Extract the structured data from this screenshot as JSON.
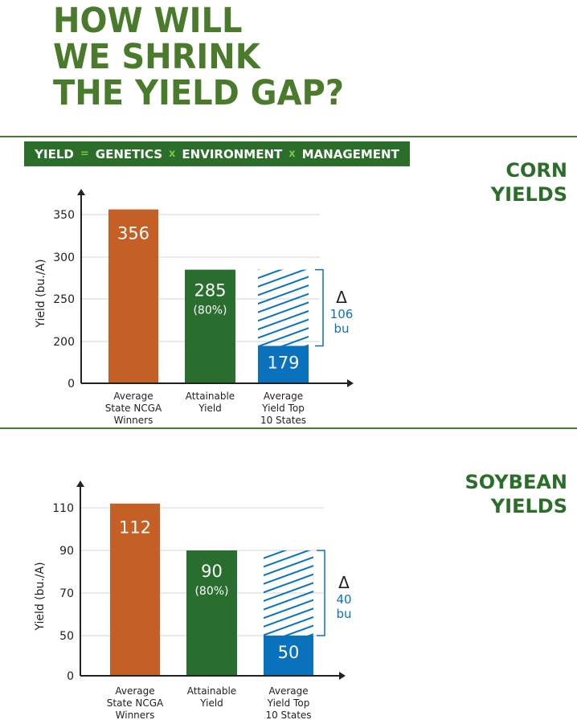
{
  "title_lines": [
    "HOW WILL",
    "WE SHRINK",
    "THE YIELD GAP?"
  ],
  "formula": {
    "terms": [
      "YIELD",
      "GENETICS",
      "ENVIRONMENT",
      "MANAGEMENT"
    ],
    "operators": [
      "=",
      "x",
      "x"
    ]
  },
  "colors": {
    "title": "#4a7b2c",
    "orange": "#c45f26",
    "green": "#2a6e2f",
    "blue": "#0a72bd",
    "grid": "#d6d6d6"
  },
  "chart_data": [
    {
      "type": "bar",
      "section_title": [
        "CORN",
        "YIELDS"
      ],
      "ylabel": "Yield (bu./A)",
      "yticks": [
        0,
        200,
        250,
        300,
        350
      ],
      "categories": [
        [
          "Average",
          "State NCGA",
          "Winners"
        ],
        [
          "Attainable",
          "Yield"
        ],
        [
          "Average",
          "Yield Top",
          "10 States"
        ]
      ],
      "values": [
        356,
        285,
        179
      ],
      "value_labels": [
        "356",
        "285",
        "179"
      ],
      "sublabels": [
        "",
        "(80%)",
        ""
      ],
      "gap": {
        "from": 179,
        "to": 285,
        "symbol": "Δ",
        "value": "106",
        "unit": "bu"
      },
      "grid": true
    },
    {
      "type": "bar",
      "section_title": [
        "SOYBEAN",
        "YIELDS"
      ],
      "ylabel": "Yield (bu./A)",
      "yticks": [
        0,
        50,
        70,
        90,
        110
      ],
      "categories": [
        [
          "Average",
          "State NCGA",
          "Winners"
        ],
        [
          "Attainable",
          "Yield"
        ],
        [
          "Average",
          "Yield Top",
          "10 States"
        ]
      ],
      "values": [
        112,
        90,
        50
      ],
      "value_labels": [
        "112",
        "90",
        "50"
      ],
      "sublabels": [
        "",
        "(80%)",
        ""
      ],
      "gap": {
        "from": 50,
        "to": 90,
        "symbol": "Δ",
        "value": "40",
        "unit": "bu"
      },
      "grid": true
    }
  ]
}
